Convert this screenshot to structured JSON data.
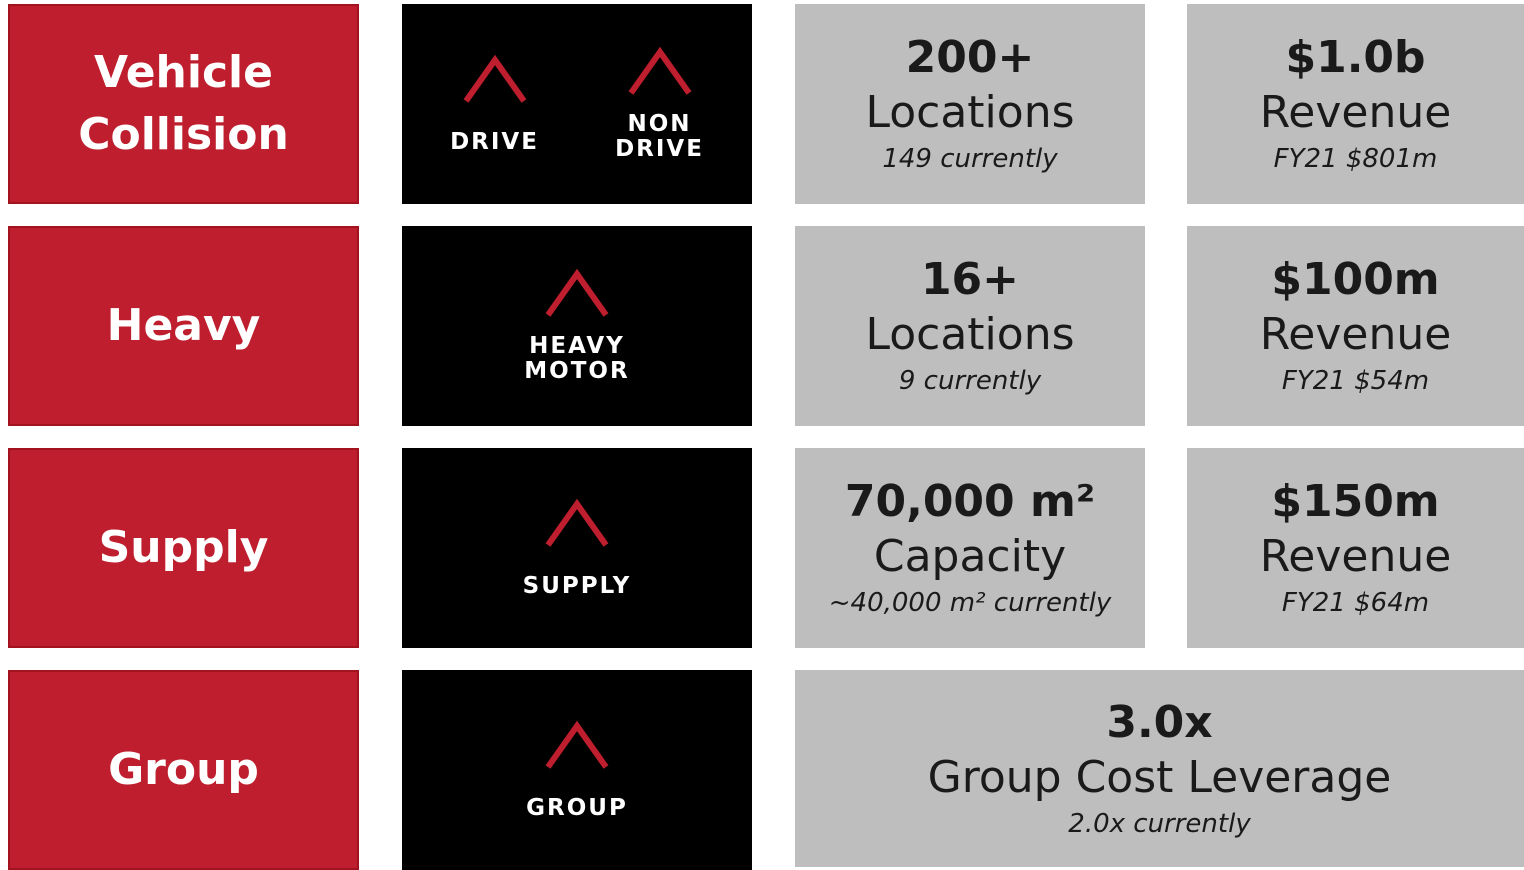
{
  "rows": [
    {
      "label": "Vehicle Collision",
      "brands": [
        {
          "lines": [
            "DRIVE"
          ]
        },
        {
          "lines": [
            "NON",
            "DRIVE"
          ]
        }
      ],
      "stats": [
        {
          "value": "200+",
          "label": "Locations",
          "note": "149 currently"
        },
        {
          "value": "$1.0b",
          "label": "Revenue",
          "note": "FY21 $801m"
        }
      ]
    },
    {
      "label": "Heavy",
      "brands": [
        {
          "lines": [
            "HEAVY",
            "MOTOR"
          ]
        }
      ],
      "stats": [
        {
          "value": "16+",
          "label": "Locations",
          "note": "9 currently"
        },
        {
          "value": "$100m",
          "label": "Revenue",
          "note": "FY21 $54m"
        }
      ]
    },
    {
      "label": "Supply",
      "brands": [
        {
          "lines": [
            "SUPPLY"
          ]
        }
      ],
      "stats": [
        {
          "value": "70,000 m²",
          "label": "Capacity",
          "note": "~40,000 m² currently"
        },
        {
          "value": "$150m",
          "label": "Revenue",
          "note": "FY21 $64m"
        }
      ]
    },
    {
      "label": "Group",
      "brands": [
        {
          "lines": [
            "GROUP"
          ]
        }
      ],
      "stats": [
        {
          "value": "3.0x",
          "label": "Group Cost Leverage",
          "note": "2.0x currently"
        }
      ]
    }
  ]
}
